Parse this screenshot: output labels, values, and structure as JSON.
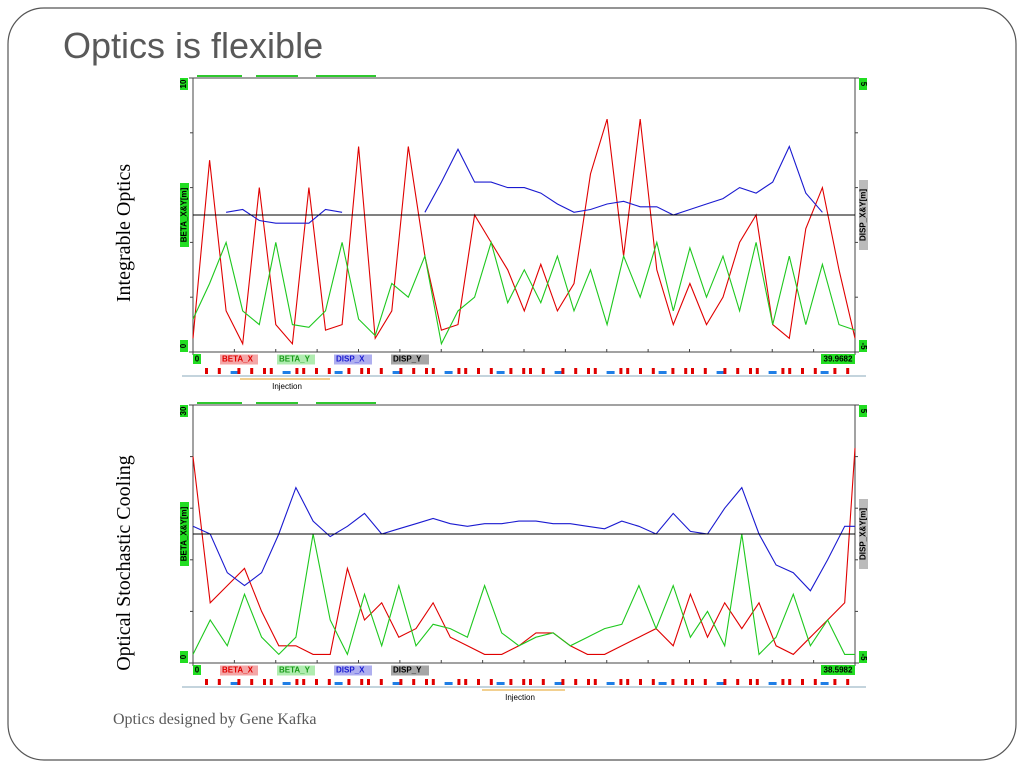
{
  "slide": {
    "title": "Optics is flexible",
    "footer": "Optics designed by Gene Kafka"
  },
  "chart_data": [
    {
      "type": "line",
      "side_label": "Integrable Optics",
      "annotation": "Injection",
      "y_label": "BETA_X&Y[m]",
      "y2_label": "DISP_X&Y[m]",
      "x": [
        0,
        1,
        2,
        3,
        4,
        5,
        6,
        7,
        8,
        9,
        10,
        11,
        12,
        13,
        14,
        15,
        16,
        17,
        18,
        19,
        20,
        21,
        22,
        23,
        24,
        25,
        26,
        27,
        28,
        29,
        30,
        31,
        32,
        33,
        34,
        35,
        36,
        37,
        38,
        39,
        39.9682
      ],
      "xlim": [
        0,
        39.9682
      ],
      "xticks": [
        0,
        39.9682
      ],
      "ylim": [
        0,
        10
      ],
      "yticks": [
        0,
        10
      ],
      "y2lim": [
        -5,
        5
      ],
      "y2ticks": [
        -5,
        5
      ],
      "series": [
        {
          "name": "BETA_X",
          "color": "#e00000",
          "values": [
            0.5,
            7.0,
            1.5,
            0.3,
            6.0,
            1.0,
            0.3,
            6.0,
            0.8,
            1.0,
            7.5,
            0.5,
            1.5,
            7.5,
            3.5,
            0.8,
            1.0,
            5.0,
            4.0,
            3.0,
            1.5,
            3.2,
            1.5,
            2.5,
            6.5,
            8.5,
            3.5,
            8.5,
            3.0,
            1.0,
            2.5,
            1.0,
            2.0,
            4.0,
            5.0,
            1.0,
            0.5,
            4.5,
            6.0,
            3.0,
            0.5
          ]
        },
        {
          "name": "BETA_Y",
          "color": "#1ec81e",
          "values": [
            1.2,
            2.5,
            4.0,
            1.5,
            1.0,
            4.0,
            1.0,
            0.9,
            1.5,
            4.0,
            1.2,
            0.6,
            2.5,
            2.0,
            3.5,
            0.3,
            1.5,
            2.0,
            4.0,
            1.8,
            3.0,
            1.8,
            3.5,
            1.5,
            3.0,
            1.0,
            3.5,
            2.0,
            4.0,
            1.5,
            3.8,
            2.0,
            3.5,
            1.5,
            4.0,
            1.0,
            3.5,
            1.0,
            3.2,
            1.0,
            0.8
          ]
        },
        {
          "name": "DISP_X",
          "color": "#1a1ad0",
          "axis": "y2",
          "values": [
            null,
            null,
            0.1,
            0.2,
            -0.2,
            -0.3,
            -0.3,
            -0.3,
            0.2,
            0.1,
            null,
            null,
            null,
            null,
            0.1,
            1.2,
            2.4,
            1.2,
            1.2,
            1.0,
            1.0,
            0.8,
            0.4,
            0.1,
            0.2,
            0.4,
            0.5,
            0.3,
            0.3,
            0.0,
            0.2,
            0.4,
            0.6,
            1.0,
            0.8,
            1.2,
            2.5,
            0.8,
            0.1,
            null,
            null
          ]
        },
        {
          "name": "DISP_Y",
          "color": "#000000",
          "axis": "y2",
          "values": [
            0,
            0,
            0,
            0,
            0,
            0,
            0,
            0,
            0,
            0,
            0,
            0,
            0,
            0,
            0,
            0,
            0,
            0,
            0,
            0,
            0,
            0,
            0,
            0,
            0,
            0,
            0,
            0,
            0,
            0,
            0,
            0,
            0,
            0,
            0,
            0,
            0,
            0,
            0,
            0,
            0
          ]
        }
      ]
    },
    {
      "type": "line",
      "side_label": "Optical Stochastic Cooling",
      "annotation": "Injection",
      "y_label": "BETA_X&Y[m]",
      "y2_label": "DISP_X&Y[m]",
      "x": [
        0,
        1,
        2,
        3,
        4,
        5,
        6,
        7,
        8,
        9,
        10,
        11,
        12,
        13,
        14,
        15,
        16,
        17,
        18,
        19,
        20,
        21,
        22,
        23,
        24,
        25,
        26,
        27,
        28,
        29,
        30,
        31,
        32,
        33,
        34,
        35,
        36,
        37,
        38,
        38.5982
      ],
      "xlim": [
        0,
        38.5982
      ],
      "xticks": [
        0,
        38.5982
      ],
      "ylim": [
        0,
        30
      ],
      "yticks": [
        0,
        30
      ],
      "y2lim": [
        -5,
        5
      ],
      "y2ticks": [
        -5,
        5
      ],
      "series": [
        {
          "name": "BETA_X",
          "color": "#e00000",
          "values": [
            24,
            7,
            9,
            11,
            6,
            2,
            2,
            1,
            1,
            11,
            5,
            7,
            3,
            4,
            7,
            3,
            2,
            1,
            1,
            2,
            3.5,
            3.5,
            2,
            1,
            1,
            2,
            3,
            4,
            2,
            8,
            3,
            7,
            4,
            7,
            2,
            1,
            3,
            5,
            7,
            25
          ]
        },
        {
          "name": "BETA_Y",
          "color": "#1ec81e",
          "values": [
            1,
            5,
            2,
            8,
            3,
            1,
            3,
            15,
            5,
            1,
            8,
            2,
            9,
            2,
            4.5,
            4,
            3,
            9,
            3.5,
            2,
            3,
            3.5,
            2,
            3,
            4,
            4.5,
            9,
            4,
            9,
            3,
            6,
            2,
            15,
            1,
            3,
            8,
            2,
            5,
            1,
            1
          ]
        },
        {
          "name": "DISP_X",
          "color": "#1a1ad0",
          "axis": "y2",
          "values": [
            0.3,
            0,
            -1.5,
            -2.0,
            -1.5,
            0,
            1.8,
            0.5,
            -0.1,
            0.3,
            0.8,
            0,
            0.2,
            0.4,
            0.6,
            0.4,
            0.3,
            0.4,
            0.4,
            0.5,
            0.5,
            0.4,
            0.4,
            0.3,
            0.2,
            0.5,
            0.3,
            0,
            0.8,
            0.1,
            0,
            1.0,
            1.8,
            0,
            -1.2,
            -1.5,
            -2.2,
            -1.0,
            0.3,
            0.3
          ]
        },
        {
          "name": "DISP_Y",
          "color": "#000000",
          "axis": "y2",
          "values": [
            0,
            0,
            0,
            0,
            0,
            0,
            0,
            0,
            0,
            0,
            0,
            0,
            0,
            0,
            0,
            0,
            0,
            0,
            0,
            0,
            0,
            0,
            0,
            0,
            0,
            0,
            0,
            0,
            0,
            0,
            0,
            0,
            0,
            0,
            0,
            0,
            0,
            0,
            0,
            0
          ]
        }
      ]
    }
  ]
}
